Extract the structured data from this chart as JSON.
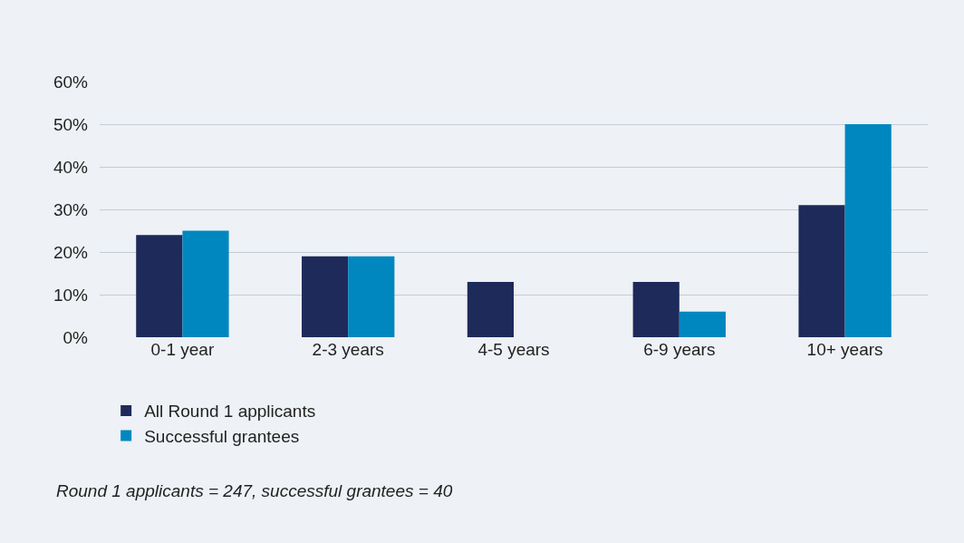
{
  "chart_data": {
    "type": "bar",
    "categories": [
      "0-1 year",
      "2-3 years",
      "4-5 years",
      "6-9 years",
      "10+ years"
    ],
    "series": [
      {
        "name": "All Round 1 applicants",
        "color": "#1e2a5a",
        "values": [
          24,
          19,
          13,
          13,
          31
        ]
      },
      {
        "name": "Successful grantees",
        "color": "#0087bf",
        "values": [
          25,
          19,
          0,
          6,
          50
        ]
      }
    ],
    "ylim": [
      0,
      60
    ],
    "yticks": [
      {
        "value": 0,
        "label": "0%"
      },
      {
        "value": 10,
        "label": "10%"
      },
      {
        "value": 20,
        "label": "20%"
      },
      {
        "value": 30,
        "label": "30%"
      },
      {
        "value": 40,
        "label": "40%"
      },
      {
        "value": 50,
        "label": "50%"
      },
      {
        "value": 60,
        "label": "60%"
      }
    ],
    "grid": "y",
    "legend": "bottom left",
    "annotations": [
      "Round 1 applicants = 247, successful grantees = 40"
    ]
  }
}
